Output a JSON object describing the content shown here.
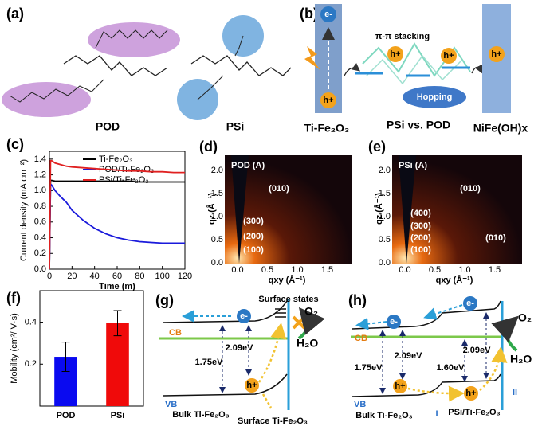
{
  "figure": {
    "a": {
      "label": "(a)",
      "polymers": [
        "POD",
        "PSi"
      ]
    },
    "b": {
      "label": "(b)",
      "electron": "e-",
      "holes": [
        "h+",
        "h+",
        "h+",
        "h+"
      ],
      "stacking": "π-π stacking",
      "hopping": "Hopping",
      "left": "Ti-Fe₂O₃",
      "middle": "PSi vs. POD",
      "right": "NiFe(OH)x"
    },
    "d": {
      "label": "(d)",
      "inset": "POD (A)",
      "peaks": [
        "(010)",
        "(300)",
        "(200)",
        "(100)"
      ],
      "xlabel": "qxy (Å⁻¹)",
      "ylabel": "qz (Å⁻¹)",
      "xticks": [
        "0.0",
        "0.5",
        "1.0",
        "1.5"
      ],
      "yticks": [
        "0.0",
        "0.5",
        "1.0",
        "1.5",
        "2.0"
      ]
    },
    "e": {
      "label": "(e)",
      "inset": "PSi (A)",
      "peaks": [
        "(010)",
        "(400)",
        "(300)",
        "(200)",
        "(100)",
        "(010)"
      ],
      "xlabel": "qxy (Å⁻¹)",
      "ylabel": "qz (Å⁻¹)",
      "xticks": [
        "0.0",
        "0.5",
        "1.0",
        "1.5"
      ],
      "yticks": [
        "0.0",
        "0.5",
        "1.0",
        "1.5",
        "2.0"
      ]
    },
    "g": {
      "label": "(g)",
      "surface_states": "Surface states",
      "o2": "O₂",
      "h2o": "H₂O",
      "cb": "CB",
      "vb": "VB",
      "gaps": [
        "1.75eV",
        "2.09eV"
      ],
      "electron": "e-",
      "hole": "h+",
      "bulk": "Bulk Ti-Fe₂O₃",
      "surface": "Surface Ti-Fe₂O₃"
    },
    "h": {
      "label": "(h)",
      "o2": "O₂",
      "h2o": "H₂O",
      "cb": "CB",
      "vb": "VB",
      "gaps": [
        "1.75eV",
        "2.09eV",
        "1.60eV",
        "2.09eV"
      ],
      "electrons": [
        "e-",
        "e-"
      ],
      "holes": [
        "h+",
        "h+"
      ],
      "bulk": "Bulk Ti-Fe₂O₃",
      "interface": "PSi/Ti-Fe₂O₃",
      "regions": [
        "I",
        "II"
      ]
    }
  },
  "chart_data": [
    {
      "type": "line",
      "label": "(c)",
      "xlabel": "Time (m)",
      "ylabel": "Current density (mA cm⁻²)",
      "x": [
        0,
        1,
        2,
        5,
        10,
        15,
        20,
        30,
        40,
        50,
        60,
        70,
        80,
        90,
        100,
        110,
        120
      ],
      "series": [
        {
          "name": "Ti-Fe₂O₃",
          "color": "#000000",
          "values": [
            0,
            1.13,
            1.13,
            1.12,
            1.12,
            1.12,
            1.12,
            1.12,
            1.12,
            1.12,
            1.12,
            1.12,
            1.11,
            1.11,
            1.11,
            1.11,
            1.11
          ]
        },
        {
          "name": "POD/Ti-Fe₂O₃",
          "color": "#1a1adb",
          "values": [
            0,
            1.08,
            1.07,
            1.0,
            0.92,
            0.85,
            0.75,
            0.62,
            0.52,
            0.45,
            0.4,
            0.37,
            0.35,
            0.34,
            0.33,
            0.33,
            0.33
          ]
        },
        {
          "name": "PSi/Ti-Fe₂O₃",
          "color": "#e02020",
          "values": [
            0,
            1.38,
            1.38,
            1.35,
            1.33,
            1.31,
            1.3,
            1.29,
            1.28,
            1.27,
            1.26,
            1.25,
            1.25,
            1.24,
            1.24,
            1.23,
            1.23
          ]
        }
      ],
      "xlim": [
        0,
        120
      ],
      "xticks": [
        0,
        20,
        40,
        60,
        80,
        100,
        120
      ],
      "ylim": [
        0,
        1.5
      ],
      "yticks": [
        {
          "value": 0,
          "label": "0.0"
        },
        0.2,
        0.4,
        0.6,
        0.8,
        {
          "value": 1,
          "label": "1.0"
        },
        1.2,
        1.4
      ],
      "legend": "upper right"
    },
    {
      "type": "bar",
      "label": "(f)",
      "ylabel": "Mobility (cm²/ V·s)",
      "categories": [
        "POD",
        "PSi"
      ],
      "values": [
        0.235,
        0.395
      ],
      "errors": [
        0.07,
        0.06
      ],
      "colors": [
        "#0a0af0",
        "#f00a0a"
      ],
      "ylim": [
        0,
        0.55
      ],
      "yticks": [
        0.2,
        0.4
      ]
    }
  ]
}
